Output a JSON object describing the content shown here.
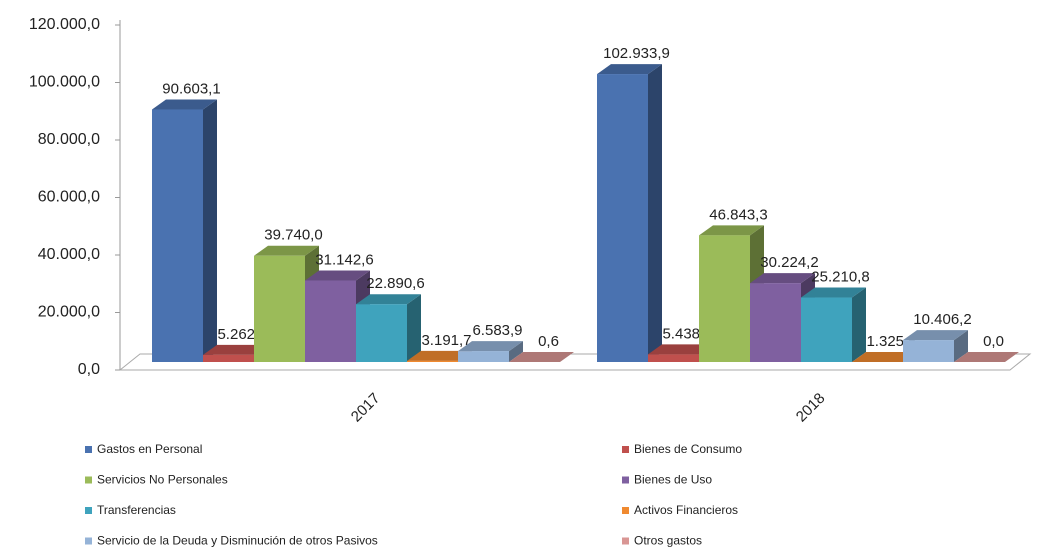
{
  "chart_data": {
    "type": "bar3d",
    "categories": [
      "2017",
      "2018"
    ],
    "series": [
      {
        "name": "Gastos en Personal",
        "color": "#4a72b0",
        "values": [
          90603.1,
          102933.9
        ],
        "value_labels": [
          "90.603,1",
          "102.933,9"
        ]
      },
      {
        "name": "Bienes de Consumo",
        "color": "#c0504d",
        "values": [
          5262.1,
          5438.8
        ],
        "value_labels": [
          "5.262,1",
          "5.438,8"
        ]
      },
      {
        "name": "Servicios No Personales",
        "color": "#9bbb59",
        "values": [
          39740.0,
          46843.3
        ],
        "value_labels": [
          "39.740,0",
          "46.843,3"
        ]
      },
      {
        "name": "Bienes de Uso",
        "color": "#7f60a0",
        "values": [
          31142.6,
          30224.2
        ],
        "value_labels": [
          "31.142,6",
          "30.224,2"
        ]
      },
      {
        "name": "Transferencias",
        "color": "#3fa3bd",
        "values": [
          22890.6,
          25210.8
        ],
        "value_labels": [
          "22.890,6",
          "25.210,8"
        ]
      },
      {
        "name": "Activos Financieros",
        "color": "#f08a30",
        "values": [
          3191.7,
          1325.5
        ],
        "value_labels": [
          "3.191,7",
          "1.325,5"
        ]
      },
      {
        "name": "Servicio de la Deuda y Disminución  de otros Pasivos",
        "color": "#95b3d7",
        "values": [
          6583.9,
          10406.2
        ],
        "value_labels": [
          "6.583,9",
          "10.406,2"
        ]
      },
      {
        "name": "Otros gastos",
        "color": "#d99694",
        "values": [
          0.6,
          0.0
        ],
        "value_labels": [
          "0,6",
          "0,0"
        ]
      }
    ],
    "ylim": [
      0,
      120000
    ],
    "yticks": [
      {
        "value": 0,
        "label": "0,0"
      },
      {
        "value": 20000,
        "label": "20.000,0"
      },
      {
        "value": 40000,
        "label": "40.000,0"
      },
      {
        "value": 60000,
        "label": "60.000,0"
      },
      {
        "value": 80000,
        "label": "80.000,0"
      },
      {
        "value": 100000,
        "label": "100.000,0"
      },
      {
        "value": 120000,
        "label": "120.000,0"
      }
    ]
  }
}
